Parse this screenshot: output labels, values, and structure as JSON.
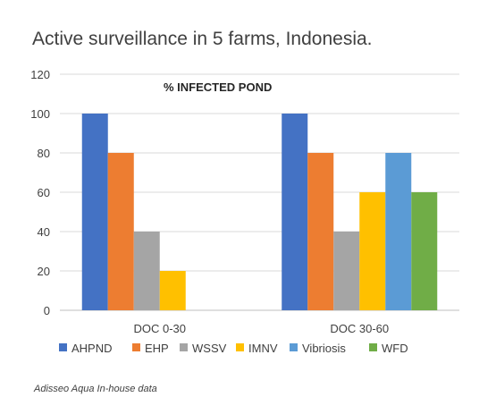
{
  "chart_data": {
    "type": "bar",
    "title": "Active surveillance in 5 farms, Indonesia.",
    "subtitle": "% INFECTED POND",
    "categories": [
      "DOC 0-30",
      "DOC 30-60"
    ],
    "series": [
      {
        "name": "AHPND",
        "color": "#4472C4",
        "values": [
          100,
          100
        ]
      },
      {
        "name": "EHP",
        "color": "#ED7D31",
        "values": [
          80,
          80
        ]
      },
      {
        "name": "WSSV",
        "color": "#A5A5A5",
        "values": [
          40,
          40
        ]
      },
      {
        "name": "IMNV",
        "color": "#FFC000",
        "values": [
          20,
          60
        ]
      },
      {
        "name": "Vibriosis",
        "color": "#5B9BD5",
        "values": [
          null,
          80
        ]
      },
      {
        "name": "WFD",
        "color": "#70AD47",
        "values": [
          null,
          60
        ]
      }
    ],
    "ylim": [
      0,
      120
    ],
    "yticks": [
      0,
      20,
      40,
      60,
      80,
      100,
      120
    ],
    "grid": true,
    "legend": "bottom",
    "xlabel": "",
    "ylabel": ""
  },
  "footer": {
    "source": "Adisseo Aqua In-house data"
  }
}
